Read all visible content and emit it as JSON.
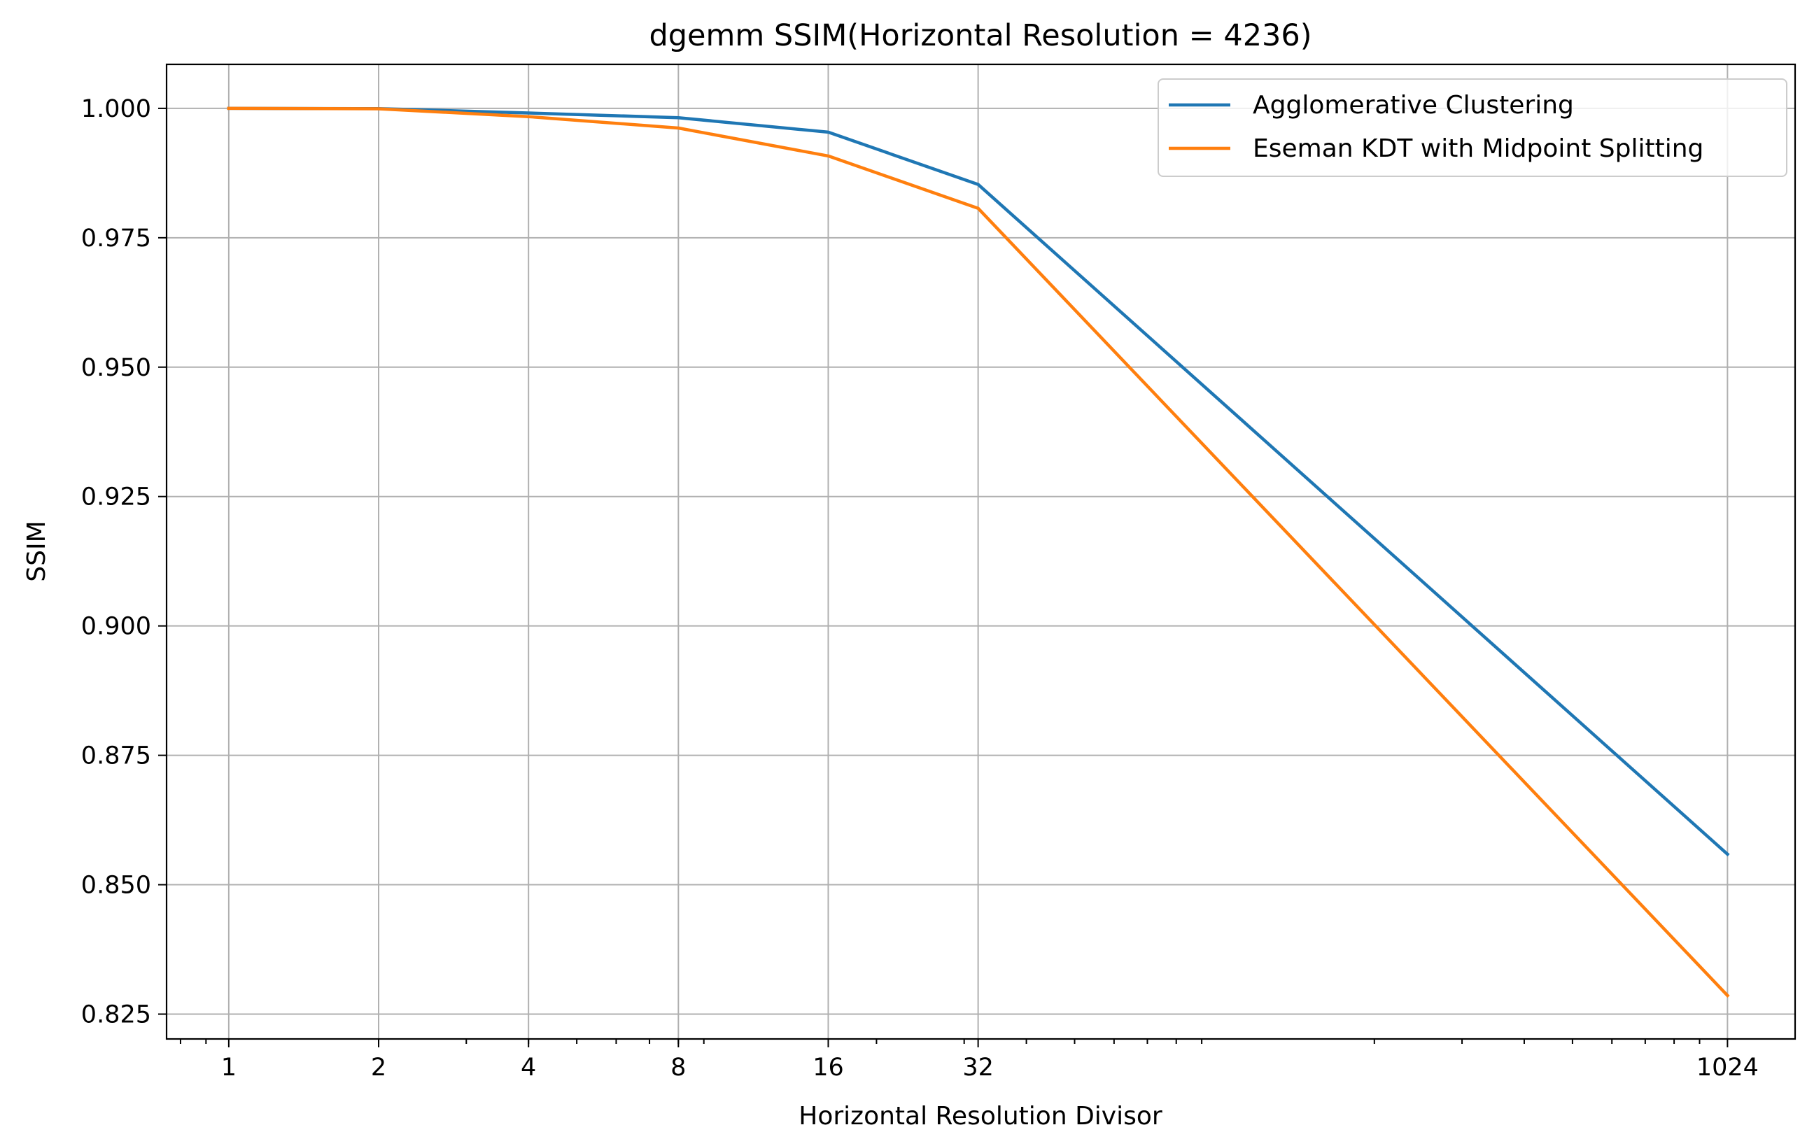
{
  "chart_data": {
    "type": "line",
    "title": "dgemm SSIM(Horizontal Resolution = 4236)",
    "xlabel": "Horizontal Resolution Divisor",
    "ylabel": "SSIM",
    "xscale": "log2",
    "xlim": [
      0.75,
      1400
    ],
    "ylim": [
      0.8202,
      1.0085
    ],
    "grid": true,
    "legend_position": "upper right",
    "x": [
      1,
      2,
      4,
      8,
      16,
      32,
      1024
    ],
    "xtick_labels": [
      "1",
      "2",
      "4",
      "8",
      "16",
      "32",
      "1024"
    ],
    "yticks": [
      1.0,
      0.975,
      0.95,
      0.925,
      0.9,
      0.875,
      0.85,
      0.825
    ],
    "ytick_labels": [
      "1.000",
      "0.975",
      "0.950",
      "0.925",
      "0.900",
      "0.875",
      "0.850",
      "0.825"
    ],
    "series": [
      {
        "name": "Agglomerative Clustering",
        "color": "#1f77b4",
        "values": [
          1.0,
          0.99995,
          0.9991,
          0.9982,
          0.9954,
          0.9853,
          0.8559
        ]
      },
      {
        "name": "Eseman KDT with Midpoint Splitting",
        "color": "#ff7f0e",
        "values": [
          1.0,
          0.99992,
          0.9984,
          0.9962,
          0.9908,
          0.9807,
          0.8286
        ]
      }
    ]
  }
}
